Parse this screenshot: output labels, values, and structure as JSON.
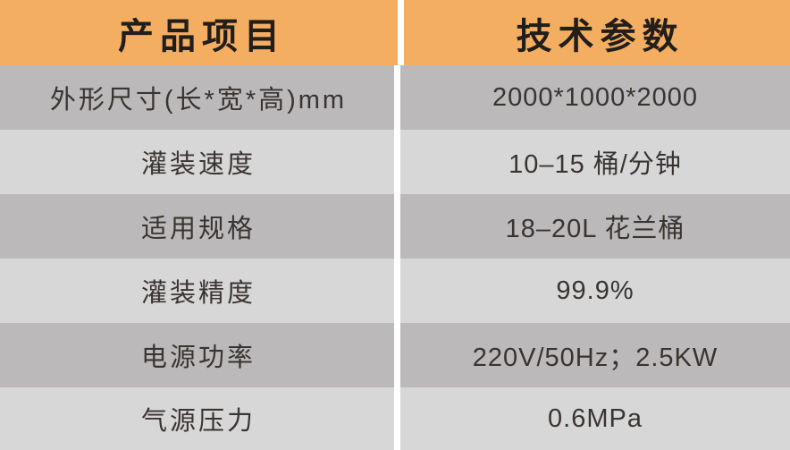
{
  "table": {
    "header": {
      "product_column": "产品项目",
      "params_column": "技术参数"
    },
    "rows": [
      {
        "label": "外形尺寸(长*宽*高)mm",
        "value": "2000*1000*2000"
      },
      {
        "label": "灌装速度",
        "value": "10–15 桶/分钟"
      },
      {
        "label": "适用规格",
        "value": "18–20L 花兰桶"
      },
      {
        "label": "灌装精度",
        "value": "99.9%"
      },
      {
        "label": "电源功率",
        "value": "220V/50Hz；2.5KW"
      },
      {
        "label": "气源压力",
        "value": "0.6MPa"
      }
    ],
    "colors": {
      "header_bg": "#F3AE62",
      "row_dark_bg": "#BBB9BA",
      "row_light_bg": "#D8D7D8",
      "divider": "#FFFFFF",
      "header_text": "#221E1B",
      "row_text": "#3A3430"
    }
  }
}
